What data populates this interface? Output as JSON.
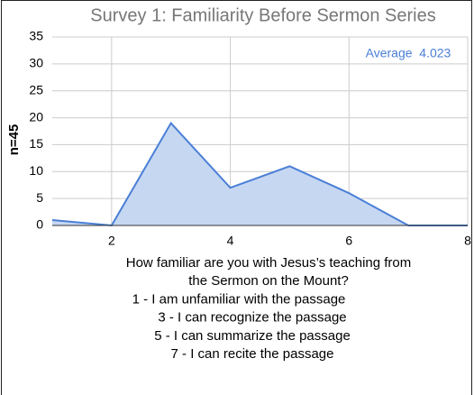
{
  "chart_data": {
    "type": "area",
    "title": "Survey 1: Familiarity Before Sermon Series",
    "ylabel": "n=45",
    "xlabel": [
      "How familiar are you with Jesus’s teaching from",
      "the Sermon on the Mount?",
      "1 - I am unfamiliar with the passage",
      "3 - I can recognize the passage",
      "5 - I can summarize the passage",
      "7 - I can recite the passage"
    ],
    "annotation": "Average  4.023",
    "x": [
      1,
      2,
      3,
      4,
      5,
      6,
      7,
      8
    ],
    "values": [
      1,
      0,
      19,
      7,
      11,
      6,
      0,
      0
    ],
    "color": "#4a7fd6",
    "fill": "#c6d7f2",
    "xlim": [
      1,
      8
    ],
    "xticks": [
      2,
      4,
      6,
      8
    ],
    "ylim": [
      0,
      35
    ],
    "yticks": [
      0,
      5,
      10,
      15,
      20,
      25,
      30,
      35
    ],
    "grid": true
  }
}
